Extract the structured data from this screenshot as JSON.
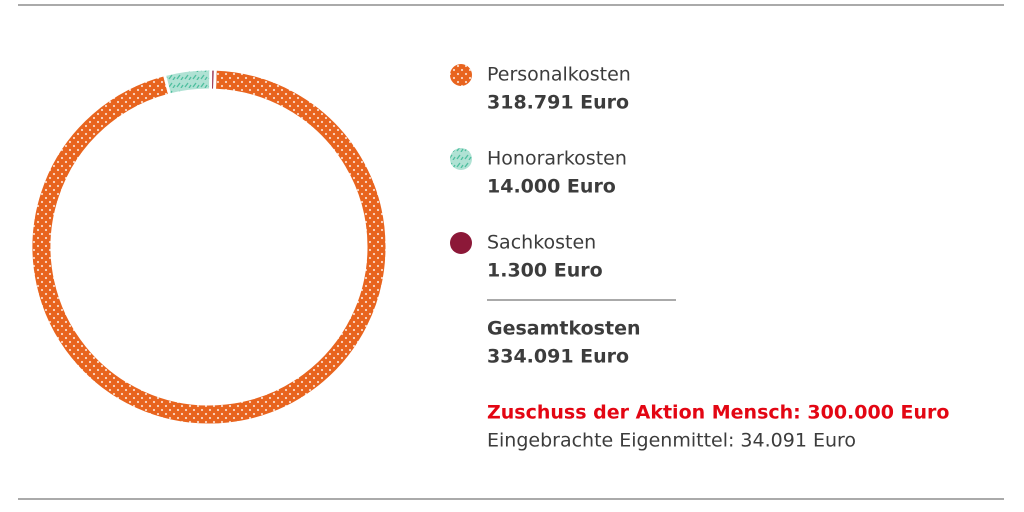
{
  "chart_data": {
    "type": "donut",
    "categories": [
      "Personalkosten",
      "Honorarkosten",
      "Sachkosten"
    ],
    "values": [
      318791,
      14000,
      1300
    ],
    "value_labels": [
      "318.791 Euro",
      "14.000 Euro",
      "1.300 Euro"
    ],
    "colors": [
      "#e8641e",
      "#4fbf9f",
      "#8c1838"
    ],
    "total_label": "Gesamtkosten",
    "total": "334.091 Euro",
    "annotations": [
      "Zuschuss der Aktion Mensch: 300.000 Euro",
      "Eingebrachte Eigenmittel: 34.091 Euro"
    ]
  }
}
